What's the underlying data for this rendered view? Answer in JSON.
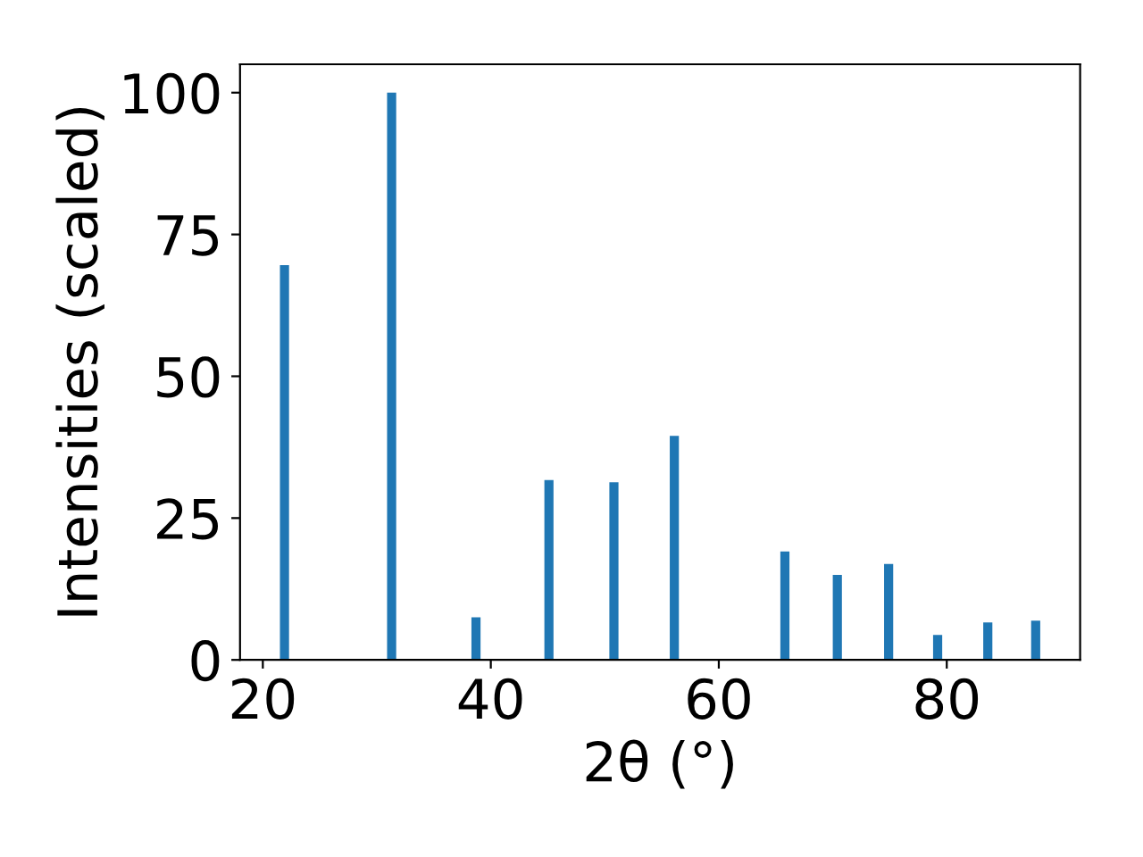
{
  "chart_data": {
    "type": "bar",
    "xlabel": "2θ (°)",
    "ylabel": "Intensities (scaled)",
    "x": [
      21.9,
      31.3,
      38.7,
      45.1,
      50.8,
      56.1,
      65.8,
      70.4,
      74.9,
      79.2,
      83.6,
      87.8
    ],
    "values": [
      69.6,
      100,
      7.5,
      31.7,
      31.3,
      39.5,
      19.1,
      15.0,
      16.9,
      4.4,
      6.6,
      6.9
    ],
    "color": "#1f77b4",
    "xlim": [
      18,
      91.7
    ],
    "xticks": [
      20,
      40,
      60,
      80
    ],
    "ylim": [
      0,
      105
    ],
    "yticks": [
      0,
      25,
      50,
      75,
      100
    ],
    "grid": false
  }
}
